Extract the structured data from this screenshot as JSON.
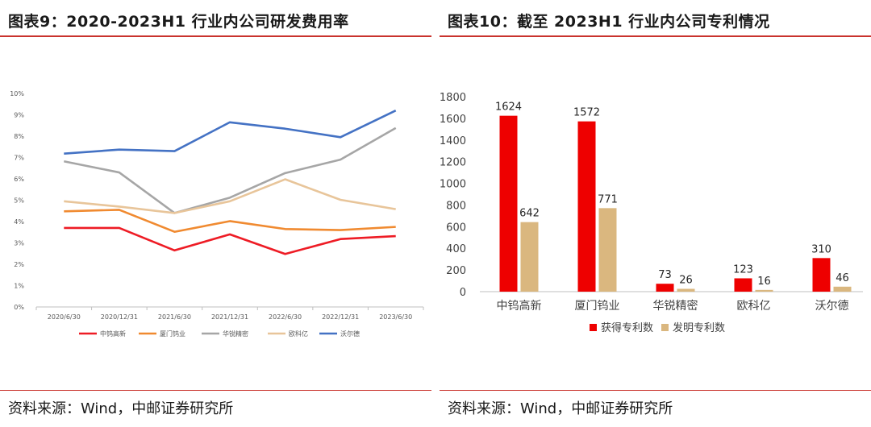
{
  "left": {
    "title": "图表9：2020-2023H1 行业内公司研发费用率",
    "source": "资料来源：Wind，中邮证券研究所"
  },
  "right": {
    "title": "图表10：截至 2023H1 行业内公司专利情况",
    "source": "资料来源：Wind，中邮证券研究所"
  },
  "chart_data": [
    {
      "type": "line",
      "title": "",
      "x": [
        "2020/6/30",
        "2020/12/31",
        "2021/6/30",
        "2021/12/31",
        "2022/6/30",
        "2022/12/31",
        "2023/6/30"
      ],
      "yticks": [
        "0%",
        "1%",
        "2%",
        "3%",
        "4%",
        "5%",
        "6%",
        "7%",
        "8%",
        "9%",
        "10%"
      ],
      "ylim": [
        0,
        10
      ],
      "grid": false,
      "legend": "bottom",
      "series": [
        {
          "name": "中钨高新",
          "color": "#ee1c25",
          "values": [
            3.7,
            3.7,
            2.65,
            3.4,
            2.48,
            3.18,
            3.32
          ]
        },
        {
          "name": "厦门钨业",
          "color": "#f08a30",
          "values": [
            4.48,
            4.55,
            3.52,
            4.02,
            3.65,
            3.6,
            3.75
          ]
        },
        {
          "name": "华锐精密",
          "color": "#a6a6a6",
          "values": [
            6.82,
            6.3,
            4.4,
            5.12,
            6.27,
            6.9,
            8.38
          ]
        },
        {
          "name": "欧科亿",
          "color": "#e8c59a",
          "values": [
            4.95,
            4.7,
            4.4,
            4.95,
            5.98,
            5.02,
            4.58
          ]
        },
        {
          "name": "沃尔德",
          "color": "#4472c4",
          "values": [
            7.18,
            7.37,
            7.3,
            8.65,
            8.35,
            7.95,
            9.2
          ]
        }
      ]
    },
    {
      "type": "bar",
      "title": "",
      "categories": [
        "中钨高新",
        "厦门钨业",
        "华锐精密",
        "欧科亿",
        "沃尔德"
      ],
      "yticks": [
        "0",
        "200",
        "400",
        "600",
        "800",
        "1000",
        "1200",
        "1400",
        "1600",
        "1800"
      ],
      "ylim": [
        0,
        1800
      ],
      "grid": false,
      "legend": "bottom",
      "series": [
        {
          "name": "获得专利数",
          "color": "#ee0000",
          "values": [
            1624,
            1572,
            73,
            123,
            310
          ],
          "labels": [
            "1624",
            "1572",
            "73",
            "123",
            "310"
          ]
        },
        {
          "name": "发明专利数",
          "color": "#dab77f",
          "values": [
            642,
            771,
            26,
            16,
            46
          ],
          "labels": [
            "642",
            "771",
            "26",
            "16",
            "46"
          ]
        }
      ]
    }
  ]
}
